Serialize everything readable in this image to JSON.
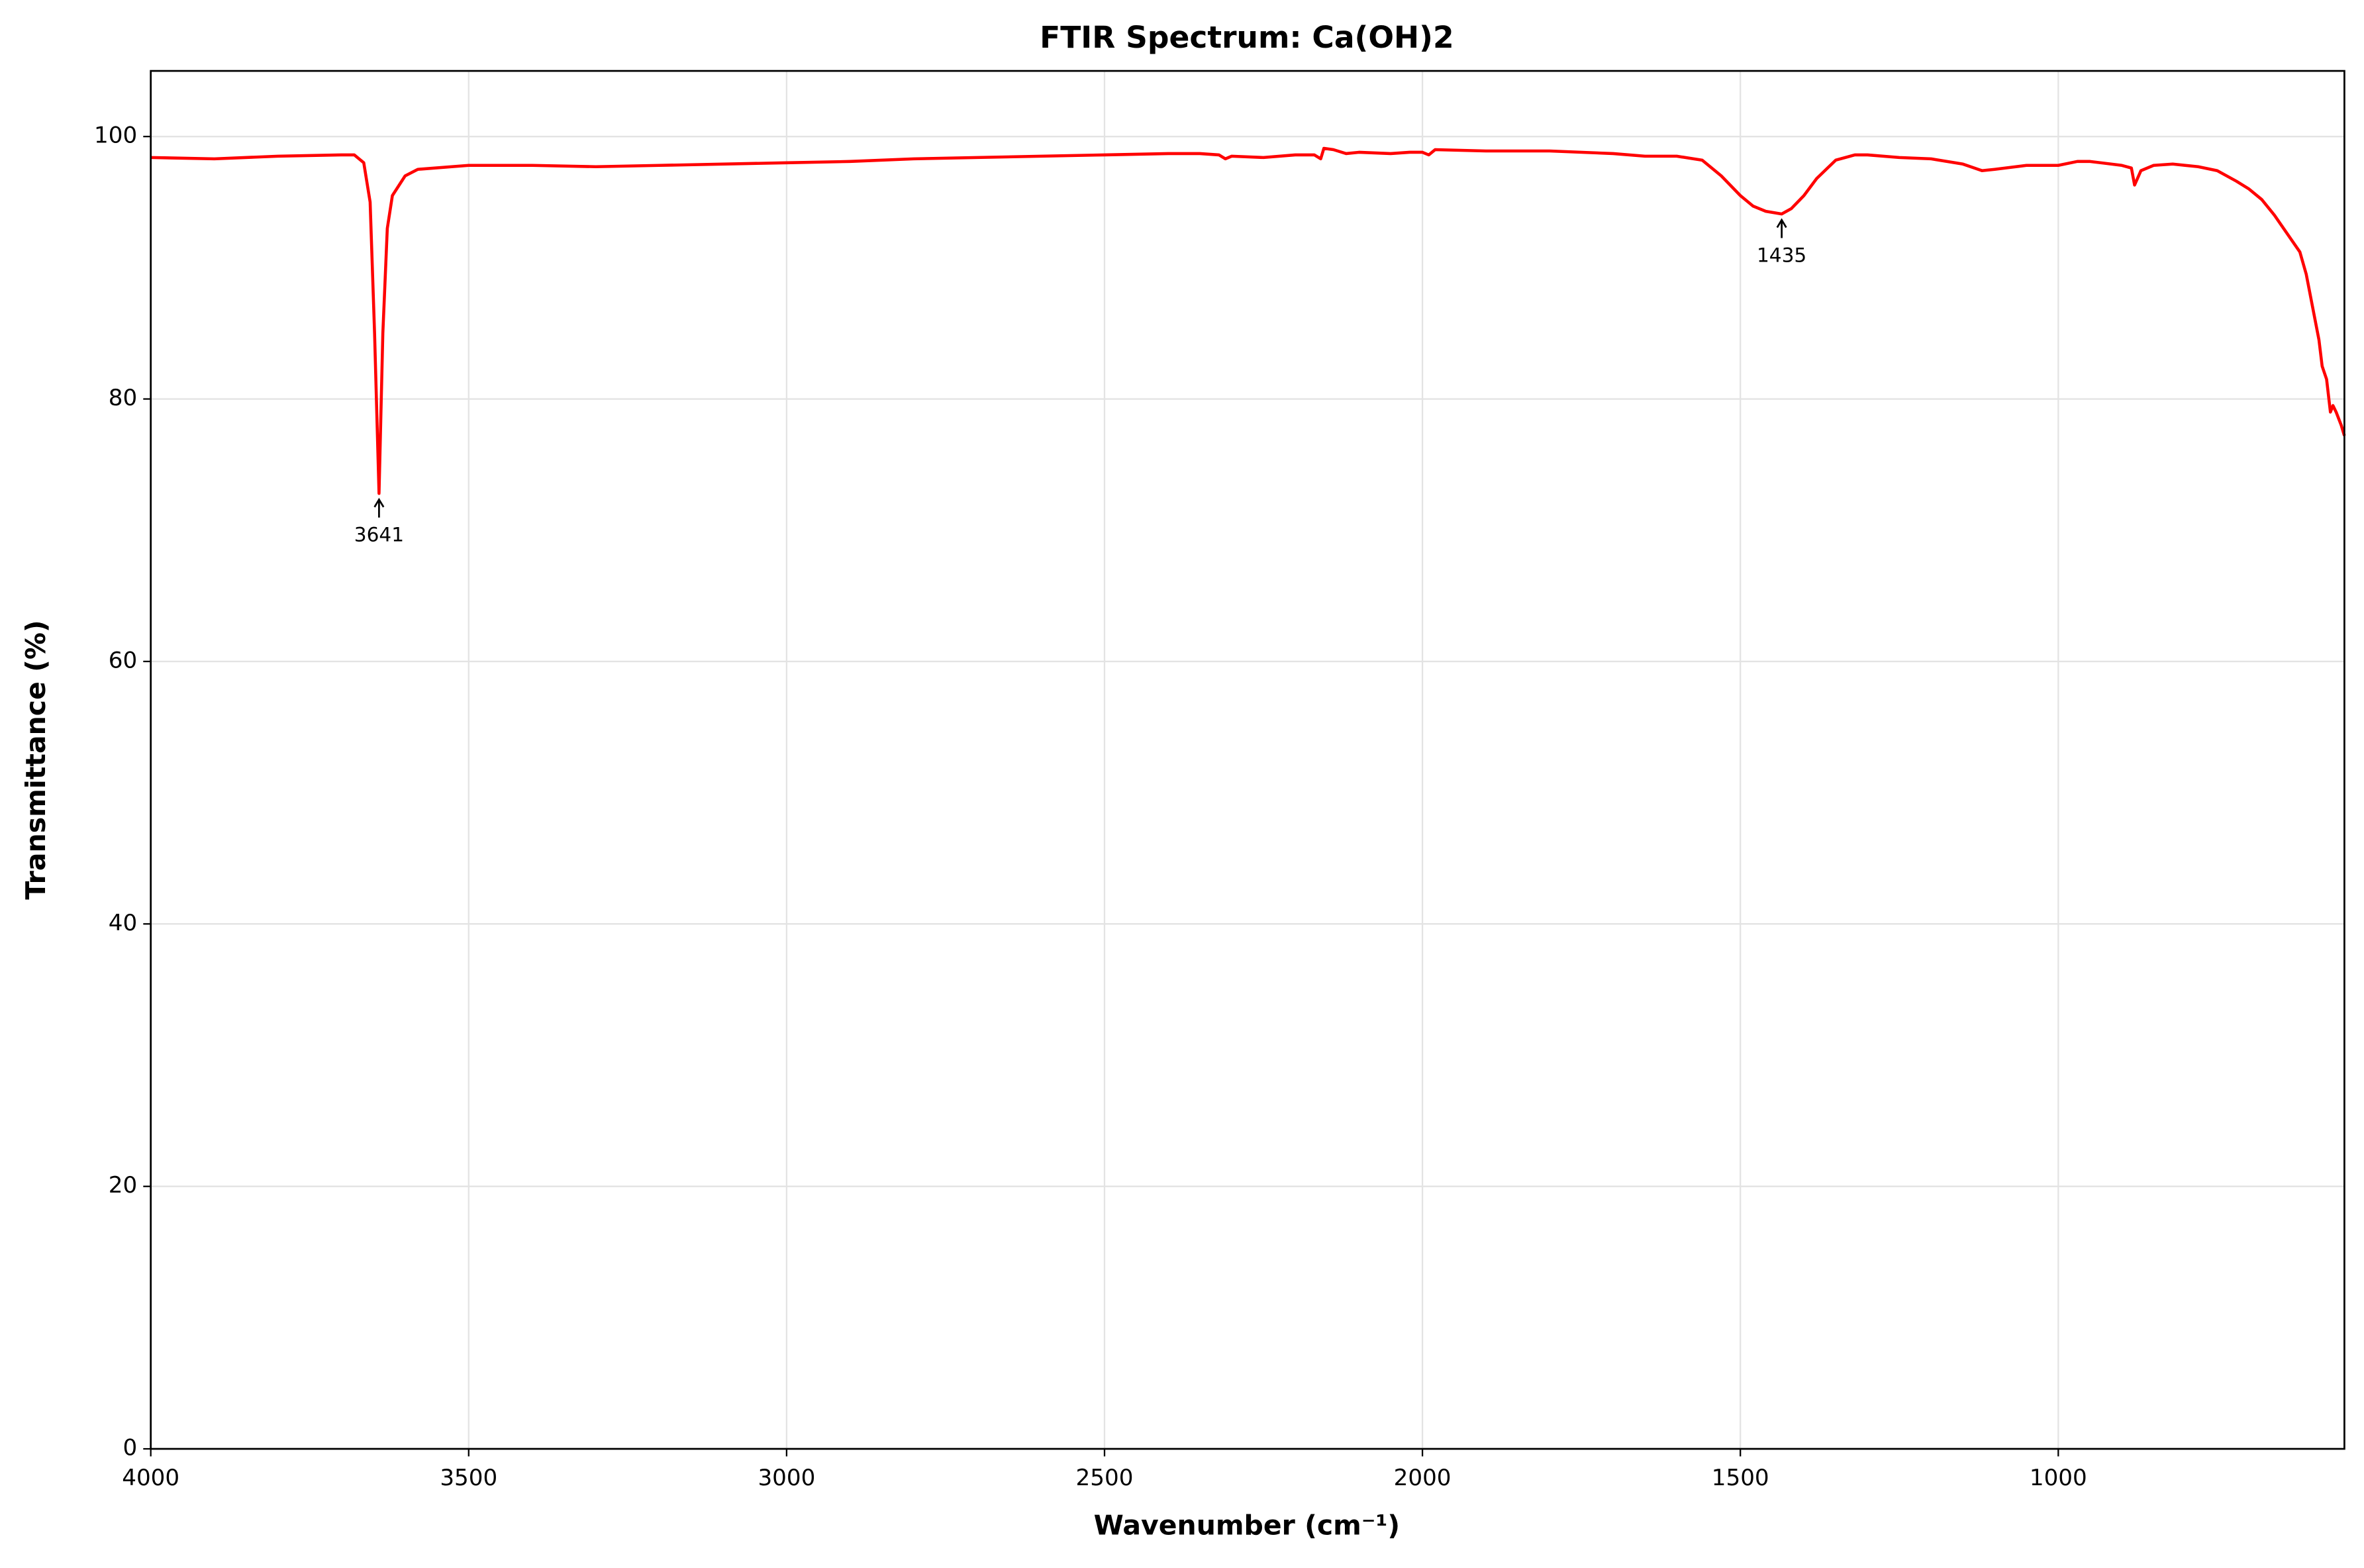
{
  "chart_data": {
    "type": "line",
    "title": "FTIR Spectrum: Ca(OH)2",
    "x_label": "Wavenumber (cm⁻¹)",
    "y_label": "Transmittance (%)",
    "x": [
      4000,
      3900,
      3800,
      3700,
      3680,
      3665,
      3655,
      3648,
      3641,
      3635,
      3628,
      3620,
      3600,
      3580,
      3500,
      3400,
      3300,
      3200,
      3000,
      2900,
      2800,
      2700,
      2600,
      2500,
      2400,
      2350,
      2320,
      2310,
      2300,
      2250,
      2200,
      2170,
      2160,
      2155,
      2140,
      2120,
      2100,
      2050,
      2020,
      2000,
      1990,
      1980,
      1900,
      1800,
      1700,
      1650,
      1600,
      1560,
      1530,
      1500,
      1480,
      1460,
      1435,
      1420,
      1400,
      1380,
      1350,
      1320,
      1300,
      1250,
      1200,
      1150,
      1120,
      1100,
      1050,
      1000,
      970,
      950,
      900,
      885,
      880,
      870,
      850,
      820,
      780,
      750,
      720,
      700,
      680,
      660,
      640,
      620,
      610,
      600,
      590,
      585,
      578,
      572,
      568,
      563,
      555,
      550
    ],
    "values": [
      98.4,
      98.3,
      98.5,
      98.6,
      98.6,
      98.0,
      95,
      85,
      72.8,
      85,
      93,
      95.5,
      97,
      97.5,
      97.8,
      97.8,
      97.7,
      97.8,
      98.0,
      98.1,
      98.3,
      98.4,
      98.5,
      98.6,
      98.7,
      98.7,
      98.6,
      98.3,
      98.5,
      98.4,
      98.6,
      98.6,
      98.3,
      99.1,
      99.0,
      98.7,
      98.8,
      98.7,
      98.8,
      98.8,
      98.6,
      99.0,
      98.9,
      98.9,
      98.7,
      98.5,
      98.5,
      98.2,
      97,
      95.5,
      94.7,
      94.3,
      94.1,
      94.5,
      95.5,
      96.8,
      98.2,
      98.6,
      98.6,
      98.4,
      98.3,
      97.9,
      97.4,
      97.5,
      97.8,
      97.8,
      98.1,
      98.1,
      97.8,
      97.6,
      96.3,
      97.4,
      97.8,
      97.9,
      97.7,
      97.4,
      96.6,
      96.0,
      95.2,
      94.0,
      92.6,
      91.2,
      89.5,
      87,
      84.5,
      82.5,
      81.5,
      79,
      79.5,
      79,
      78,
      77.2
    ],
    "color": "#ff0000",
    "xlim": [
      4000,
      550
    ],
    "ylim": [
      0,
      105
    ],
    "xticks": [
      4000,
      3500,
      3000,
      2500,
      2000,
      1500,
      1000
    ],
    "yticks": [
      0,
      20,
      40,
      60,
      80,
      100
    ],
    "grid": true,
    "annotations": [
      {
        "label": "3641",
        "x": 3641,
        "y": 72.8
      },
      {
        "label": "1435",
        "x": 1435,
        "y": 94.1
      }
    ]
  }
}
